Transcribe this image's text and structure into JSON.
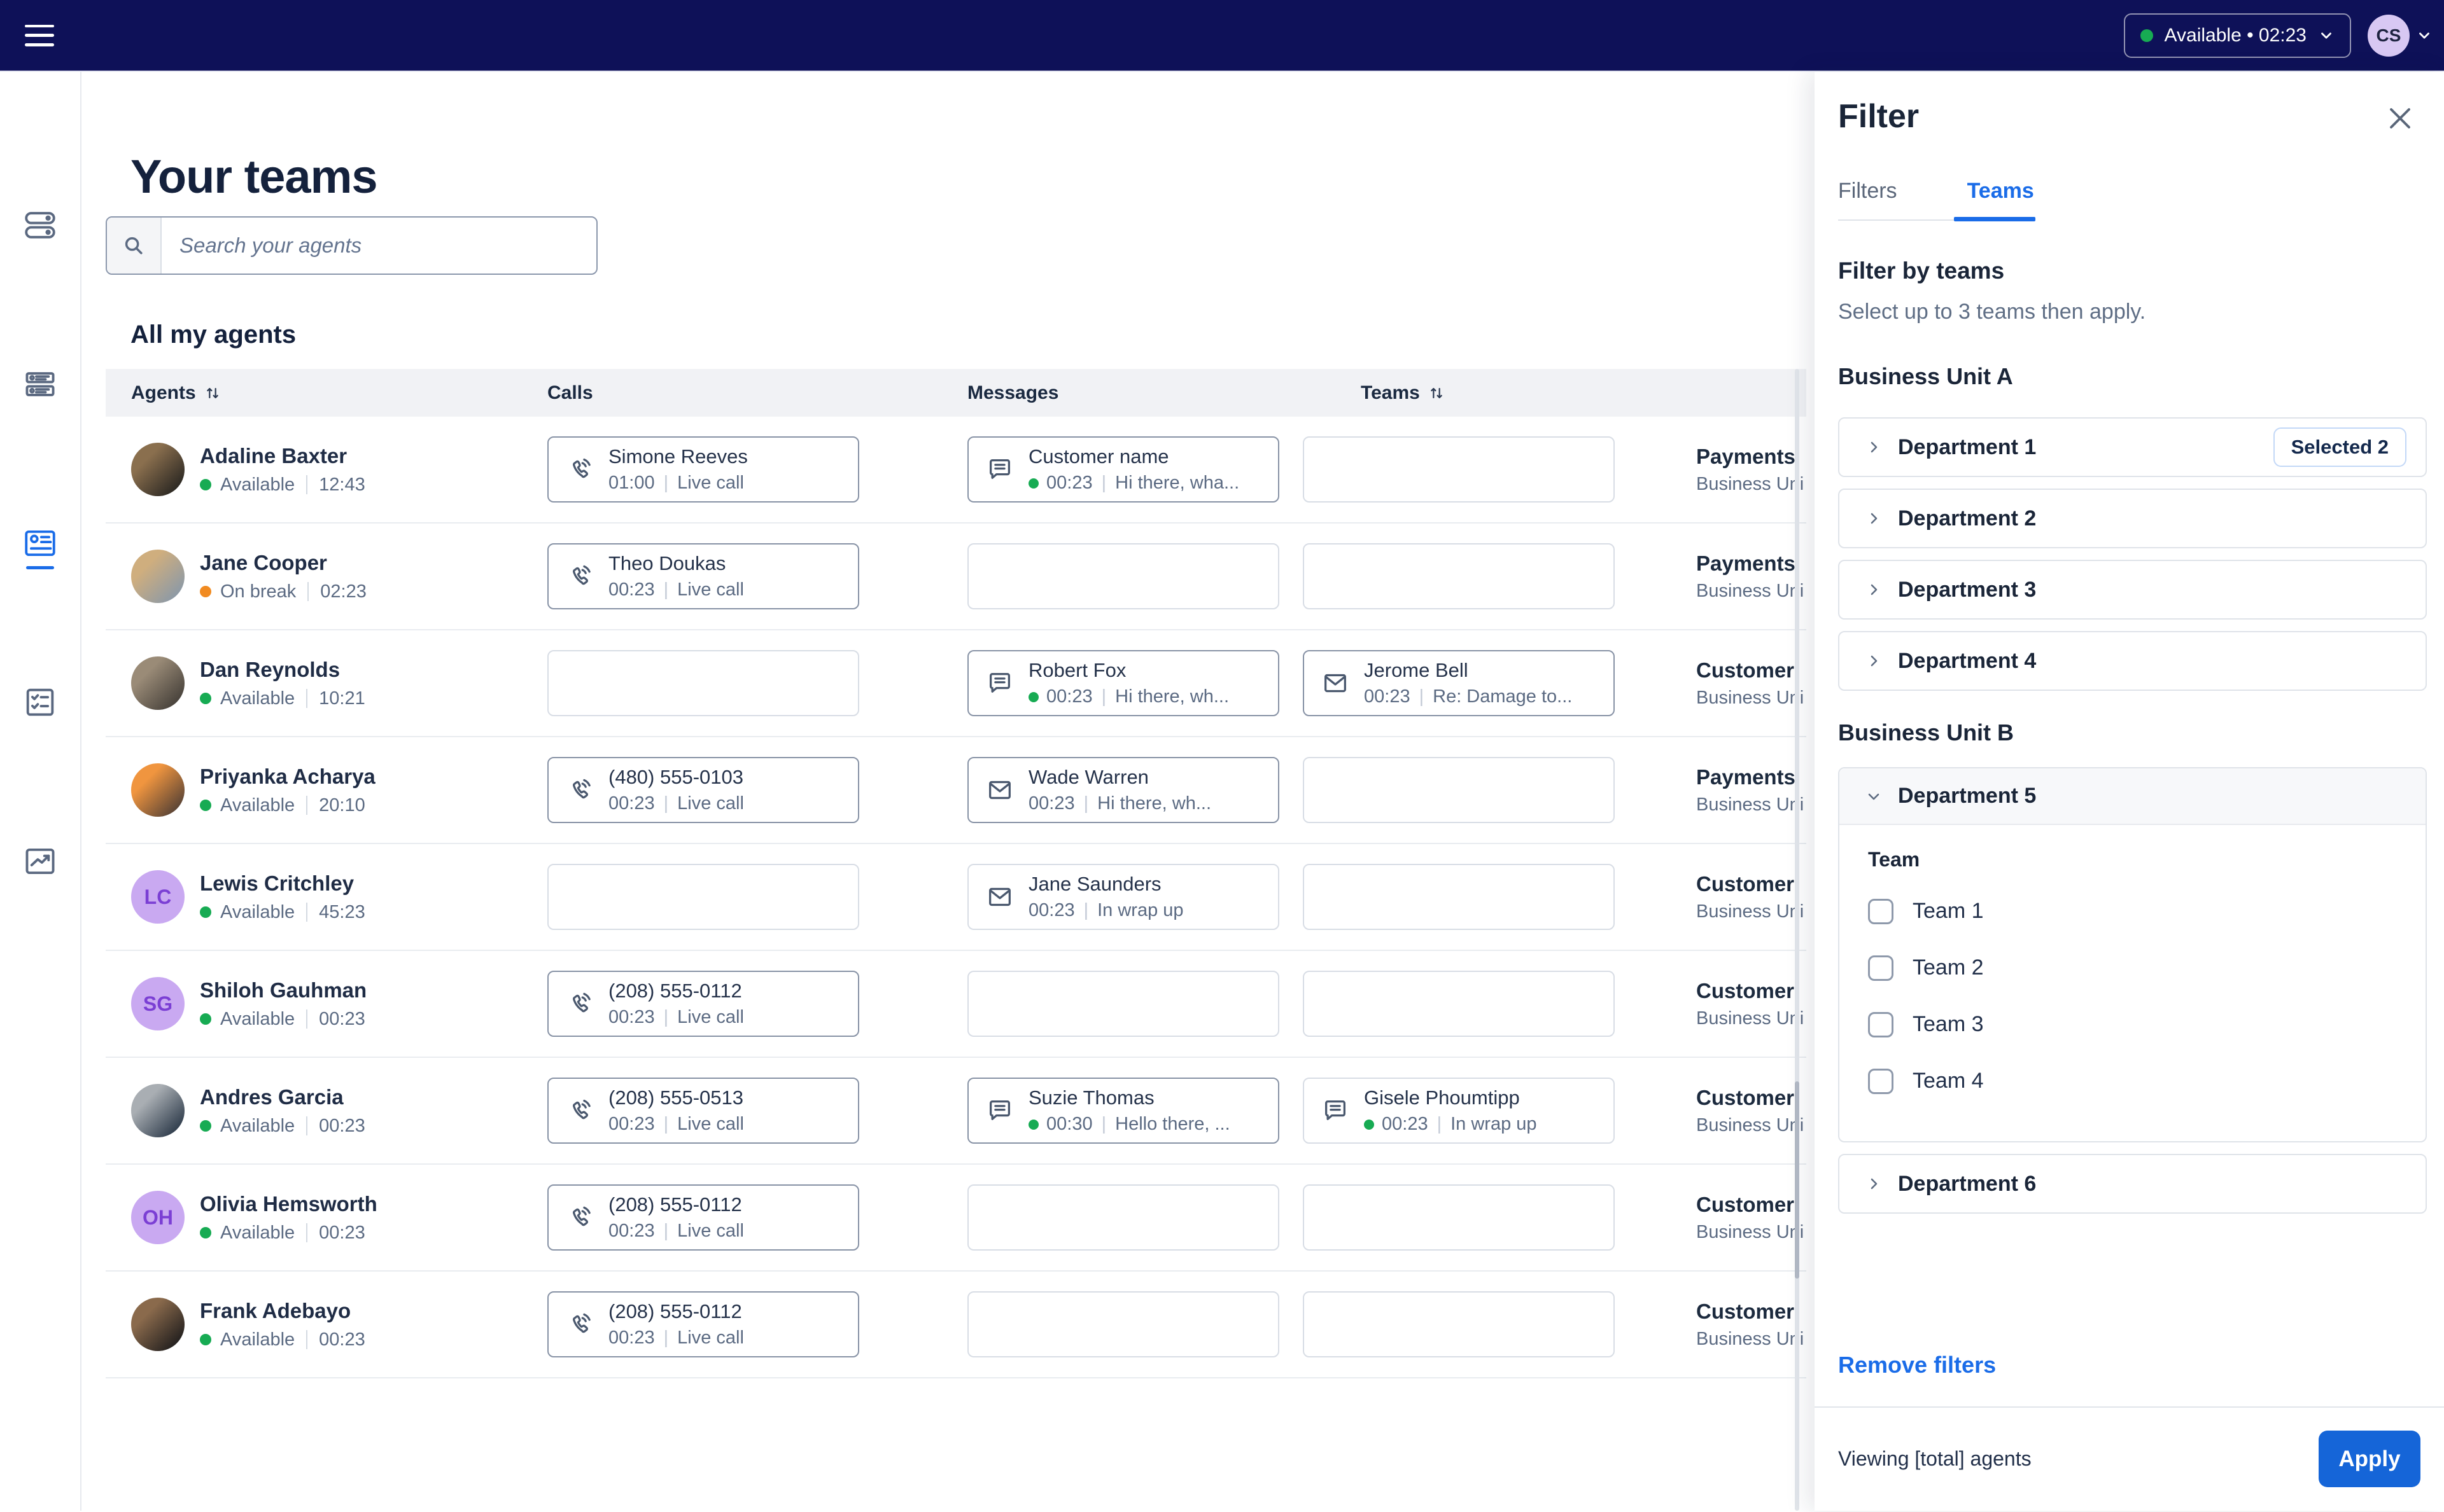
{
  "topbar": {
    "status_label": "Available • 02:23",
    "avatar_initials": "CS"
  },
  "sidebar": {
    "items": [
      {
        "icon": "toggles-icon",
        "active": false
      },
      {
        "icon": "queue-list-icon",
        "active": false
      },
      {
        "icon": "contact-card-icon",
        "active": true
      },
      {
        "icon": "checklist-icon",
        "active": false
      },
      {
        "icon": "chart-icon",
        "active": false
      }
    ]
  },
  "main": {
    "title": "Your teams",
    "search_placeholder": "Search your agents",
    "section_title": "All my agents",
    "table": {
      "columns": [
        {
          "label": "Agents",
          "sortable": true
        },
        {
          "label": "Calls",
          "sortable": false
        },
        {
          "label": "Messages",
          "sortable": false
        },
        {
          "label": "Teams",
          "sortable": true
        }
      ],
      "rows": [
        {
          "name": "Adaline Baxter",
          "avatar": {
            "type": "photo",
            "c1": "#8a6f4e",
            "c2": "#2e2a24"
          },
          "status": {
            "label": "Available",
            "time": "12:43",
            "color": "#17ab53"
          },
          "call": {
            "title": "Simone Reeves",
            "time": "01:00",
            "meta": "Live call",
            "active": true
          },
          "messages": [
            {
              "type": "chat",
              "title": "Customer name",
              "time": "00:23",
              "meta": "Hi there, wha...",
              "dot": true,
              "active": true
            },
            null
          ],
          "team": {
            "title": "Payments",
            "subtitle": "Business Uni"
          }
        },
        {
          "name": "Jane Cooper",
          "avatar": {
            "type": "photo",
            "c1": "#cfae7e",
            "c2": "#8e9aa5"
          },
          "status": {
            "label": "On break",
            "time": "02:23",
            "color": "#f18b21"
          },
          "call": {
            "title": "Theo Doukas",
            "time": "00:23",
            "meta": "Live call",
            "active": true
          },
          "messages": [
            null,
            null
          ],
          "team": {
            "title": "Payments",
            "subtitle": "Business Uni"
          }
        },
        {
          "name": "Dan Reynolds",
          "avatar": {
            "type": "photo",
            "c1": "#9a8b77",
            "c2": "#4a443d"
          },
          "status": {
            "label": "Available",
            "time": "10:21",
            "color": "#17ab53"
          },
          "call": null,
          "messages": [
            {
              "type": "chat",
              "title": "Robert Fox",
              "time": "00:23",
              "meta": "Hi there, wh...",
              "dot": true,
              "active": true
            },
            {
              "type": "mail",
              "title": "Jerome Bell",
              "time": "00:23",
              "meta": "Re: Damage to...",
              "dot": false,
              "active": true
            }
          ],
          "team": {
            "title": "Customer",
            "subtitle": "Business Uni"
          }
        },
        {
          "name": "Priyanka Acharya",
          "avatar": {
            "type": "photo",
            "c1": "#f0953f",
            "c2": "#5e4636"
          },
          "status": {
            "label": "Available",
            "time": "20:10",
            "color": "#17ab53"
          },
          "call": {
            "title": "(480) 555-0103",
            "time": "00:23",
            "meta": "Live call",
            "active": true
          },
          "messages": [
            {
              "type": "mail",
              "title": "Wade Warren",
              "time": "00:23",
              "meta": "Hi there, wh...",
              "dot": false,
              "active": true
            },
            null
          ],
          "team": {
            "title": "Payments",
            "subtitle": "Business Uni"
          }
        },
        {
          "name": "Lewis Critchley",
          "avatar": {
            "type": "initials",
            "initials": "LC",
            "bg": "#c9a9f1",
            "fg": "#7b3fd4"
          },
          "status": {
            "label": "Available",
            "time": "45:23",
            "color": "#17ab53"
          },
          "call": null,
          "messages": [
            {
              "type": "mail",
              "title": "Jane Saunders",
              "time": "00:23",
              "meta": "In wrap up",
              "dot": false,
              "active": false
            },
            null
          ],
          "team": {
            "title": "Customer",
            "subtitle": "Business Uni"
          }
        },
        {
          "name": "Shiloh Gauhman",
          "avatar": {
            "type": "initials",
            "initials": "SG",
            "bg": "#c9a9f1",
            "fg": "#7b3fd4"
          },
          "status": {
            "label": "Available",
            "time": "00:23",
            "color": "#17ab53"
          },
          "call": {
            "title": "(208) 555-0112",
            "time": "00:23",
            "meta": "Live call",
            "active": true
          },
          "messages": [
            null,
            null
          ],
          "team": {
            "title": "Customer",
            "subtitle": "Business Uni"
          }
        },
        {
          "name": "Andres Garcia",
          "avatar": {
            "type": "photo",
            "c1": "#a9aeb3",
            "c2": "#33404f"
          },
          "status": {
            "label": "Available",
            "time": "00:23",
            "color": "#17ab53"
          },
          "call": {
            "title": "(208) 555-0513",
            "time": "00:23",
            "meta": "Live call",
            "active": true
          },
          "messages": [
            {
              "type": "chat",
              "title": "Suzie Thomas",
              "time": "00:30",
              "meta": "Hello there, ...",
              "dot": true,
              "active": true
            },
            {
              "type": "chat",
              "title": "Gisele Phoumtipp",
              "time": "00:23",
              "meta": "In wrap up",
              "dot": true,
              "active": false
            }
          ],
          "team": {
            "title": "Customer",
            "subtitle": "Business Uni"
          }
        },
        {
          "name": "Olivia Hemsworth",
          "avatar": {
            "type": "initials",
            "initials": "OH",
            "bg": "#c9a9f1",
            "fg": "#7b3fd4"
          },
          "status": {
            "label": "Available",
            "time": "00:23",
            "color": "#17ab53"
          },
          "call": {
            "title": "(208) 555-0112",
            "time": "00:23",
            "meta": "Live call",
            "active": true
          },
          "messages": [
            null,
            null
          ],
          "team": {
            "title": "Customer",
            "subtitle": "Business Uni"
          }
        },
        {
          "name": "Frank Adebayo",
          "avatar": {
            "type": "photo",
            "c1": "#8a6a4c",
            "c2": "#262220"
          },
          "status": {
            "label": "Available",
            "time": "00:23",
            "color": "#17ab53"
          },
          "call": {
            "title": "(208) 555-0112",
            "time": "00:23",
            "meta": "Live call",
            "active": true
          },
          "messages": [
            null,
            null
          ],
          "team": {
            "title": "Customer",
            "subtitle": "Business Uni"
          }
        }
      ]
    }
  },
  "filter_panel": {
    "title": "Filter",
    "tabs": [
      {
        "label": "Filters",
        "active": false
      },
      {
        "label": "Teams",
        "active": true
      }
    ],
    "heading": "Filter by teams",
    "subheading": "Select up to 3 teams then apply.",
    "business_units": [
      {
        "label": "Business Unit A",
        "departments": [
          {
            "label": "Department 1",
            "badge": "Selected 2",
            "expanded": false
          },
          {
            "label": "Department 2",
            "badge": null,
            "expanded": false
          },
          {
            "label": "Department 3",
            "badge": null,
            "expanded": false
          },
          {
            "label": "Department 4",
            "badge": null,
            "expanded": false
          }
        ]
      },
      {
        "label": "Business Unit B",
        "departments": [
          {
            "label": "Department 5",
            "badge": null,
            "expanded": true,
            "team_group_label": "Team",
            "teams": [
              {
                "label": "Team 1",
                "checked": false
              },
              {
                "label": "Team 2",
                "checked": false
              },
              {
                "label": "Team 3",
                "checked": false
              },
              {
                "label": "Team 4",
                "checked": false
              }
            ]
          },
          {
            "label": "Department 6",
            "badge": null,
            "expanded": false
          }
        ]
      }
    ],
    "remove_filters_label": "Remove filters",
    "viewing_label": "Viewing [total] agents",
    "apply_label": "Apply"
  },
  "colors": {
    "topbar": "#0e1158",
    "accent_blue": "#1a6ce8",
    "apply_blue": "#1565d8",
    "available_green": "#17ab53",
    "break_orange": "#f18b21"
  }
}
